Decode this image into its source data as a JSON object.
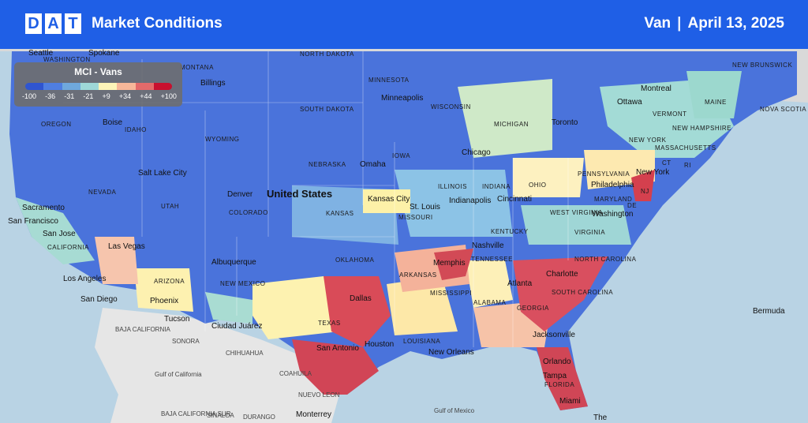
{
  "header": {
    "logo_letters": [
      "D",
      "A",
      "T"
    ],
    "title": "Market Conditions",
    "equipment": "Van",
    "separator": "|",
    "date": "April 13, 2025"
  },
  "legend": {
    "title": "MCI - Vans",
    "ticks": [
      "-100",
      "-36",
      "-31",
      "-21",
      "+9",
      "+34",
      "+44",
      "+100"
    ],
    "colors": [
      "#2f55d0",
      "#4f7ee0",
      "#6fa8dc",
      "#9ed8d8",
      "#fdf4b8",
      "#f7b799",
      "#e36a6a",
      "#c8102e"
    ]
  },
  "map": {
    "country_label": "United States",
    "state_labels": [
      "WASHINGTON",
      "MONTANA",
      "NORTH DAKOTA",
      "MINNESOTA",
      "OREGON",
      "IDAHO",
      "SOUTH DAKOTA",
      "WISCONSIN",
      "MICHIGAN",
      "WYOMING",
      "NEBRASKA",
      "IOWA",
      "ILLINOIS",
      "INDIANA",
      "OHIO",
      "PENNSYLVANIA",
      "NEW YORK",
      "NEVADA",
      "UTAH",
      "COLORADO",
      "KANSAS",
      "MISSOURI",
      "KENTUCKY",
      "WEST VIRGINIA",
      "VIRGINIA",
      "CALIFORNIA",
      "ARIZONA",
      "NEW MEXICO",
      "OKLAHOMA",
      "ARKANSAS",
      "TENNESSEE",
      "NORTH CAROLINA",
      "SOUTH CAROLINA",
      "MISSISSIPPI",
      "ALABAMA",
      "GEORGIA",
      "TEXAS",
      "LOUISIANA",
      "FLORIDA",
      "MAINE",
      "VERMONT",
      "NEW HAMPSHIRE",
      "MASSACHUSETTS",
      "CT",
      "RI",
      "NJ",
      "DE",
      "MARYLAND",
      "NEW BRUNSWICK",
      "NOVA SCOTIA",
      "SONORA",
      "CHIHUAHUA",
      "COAHUILA",
      "NUEVO LEON",
      "SINALOA",
      "DURANGO",
      "BAJA CALIFORNIA",
      "BAJA CALIFORNIA SUR"
    ],
    "city_labels": [
      "Seattle",
      "Spokane",
      "Billings",
      "Boise",
      "Minneapolis",
      "Toronto",
      "Ottawa",
      "Montreal",
      "Chicago",
      "Salt Lake City",
      "Omaha",
      "Denver",
      "Kansas City",
      "St. Louis",
      "Indianapolis",
      "Cincinnati",
      "Philadelphia",
      "New York",
      "Washington",
      "Sacramento",
      "San Francisco",
      "San Jose",
      "Las Vegas",
      "Los Angeles",
      "San Diego",
      "Phoenix",
      "Tucson",
      "Albuquerque",
      "Nashville",
      "Memphis",
      "Charlotte",
      "Atlanta",
      "Dallas",
      "Ciudad Juárez",
      "San Antonio",
      "Houston",
      "New Orleans",
      "Jacksonville",
      "Orlando",
      "Tampa",
      "Miami",
      "Monterrey",
      "Bermuda",
      "Gulf of Mexico",
      "Gulf of California",
      "The"
    ]
  }
}
